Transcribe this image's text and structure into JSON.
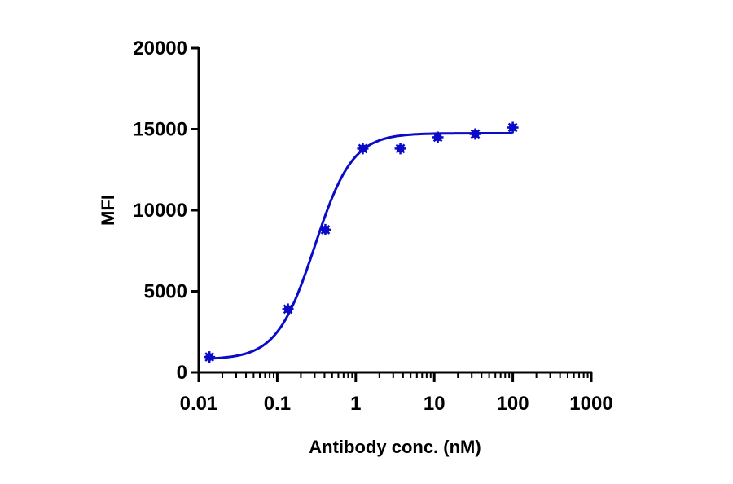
{
  "chart_data": {
    "type": "scatter",
    "fit": "sigmoidal 4PL dose-response",
    "title": "",
    "xlabel": "Antibody conc. (nM)",
    "ylabel": "MFI",
    "xscale": "log",
    "xlim": [
      0.01,
      1000
    ],
    "ylim": [
      0,
      20000
    ],
    "x_ticks": [
      "0.01",
      "0.1",
      "1",
      "10",
      "100",
      "1000"
    ],
    "y_ticks": [
      "0",
      "5000",
      "10000",
      "15000",
      "20000"
    ],
    "grid": false,
    "legend": null,
    "series": [
      {
        "name": "MFI",
        "color": "#0a0ac8",
        "x": [
          0.0137,
          0.137,
          0.41,
          1.23,
          3.7,
          11.1,
          33.3,
          100
        ],
        "y": [
          950,
          3900,
          8800,
          13800,
          13800,
          14500,
          14700,
          15100
        ]
      }
    ],
    "fit_params": {
      "bottom": 800,
      "top": 14750,
      "ec50": 0.3,
      "hill": 1.8
    }
  }
}
